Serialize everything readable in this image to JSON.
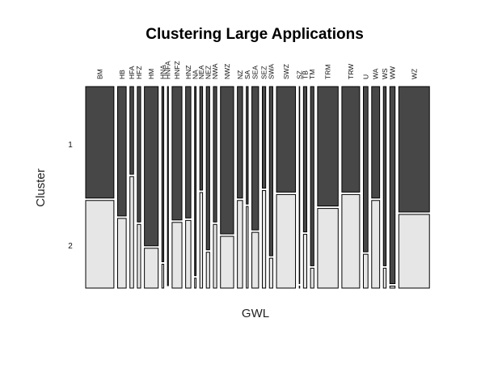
{
  "chart_data": {
    "type": "mosaic",
    "title": "Clustering Large Applications",
    "xlabel": "GWL",
    "ylabel": "Cluster",
    "cluster_labels": [
      "1",
      "2"
    ],
    "colors": {
      "cluster_1": "#474747",
      "cluster_2": "#e6e6e6",
      "border": "#000000"
    },
    "categories": [
      "BM",
      "HB",
      "HFA",
      "HFZ",
      "HM",
      "HNA",
      "HNFA",
      "HNFZ",
      "HNZ",
      "NA",
      "NEA",
      "NEZ",
      "NWA",
      "NWZ",
      "NZ",
      "SA",
      "SEA",
      "SEZ",
      "SWA",
      "SWZ",
      "SZ",
      "TB",
      "TM",
      "TRM",
      "TRW",
      "U",
      "WA",
      "WS",
      "WW",
      "WZ"
    ],
    "weights": [
      0.092,
      0.028,
      0.012,
      0.011,
      0.045,
      0.006,
      0.003,
      0.032,
      0.017,
      0.005,
      0.009,
      0.011,
      0.011,
      0.043,
      0.017,
      0.006,
      0.022,
      0.011,
      0.011,
      0.062,
      0.001,
      0.011,
      0.011,
      0.067,
      0.058,
      0.015,
      0.026,
      0.009,
      0.017,
      0.1
    ],
    "share_cluster_1": [
      0.56,
      0.65,
      0.44,
      0.68,
      0.8,
      0.88,
      1.0,
      0.67,
      0.66,
      0.95,
      0.52,
      0.82,
      0.68,
      0.74,
      0.56,
      0.59,
      0.72,
      0.51,
      0.85,
      0.53,
      0.99,
      0.73,
      0.9,
      0.6,
      0.53,
      0.83,
      0.56,
      0.9,
      0.99,
      0.63
    ]
  }
}
